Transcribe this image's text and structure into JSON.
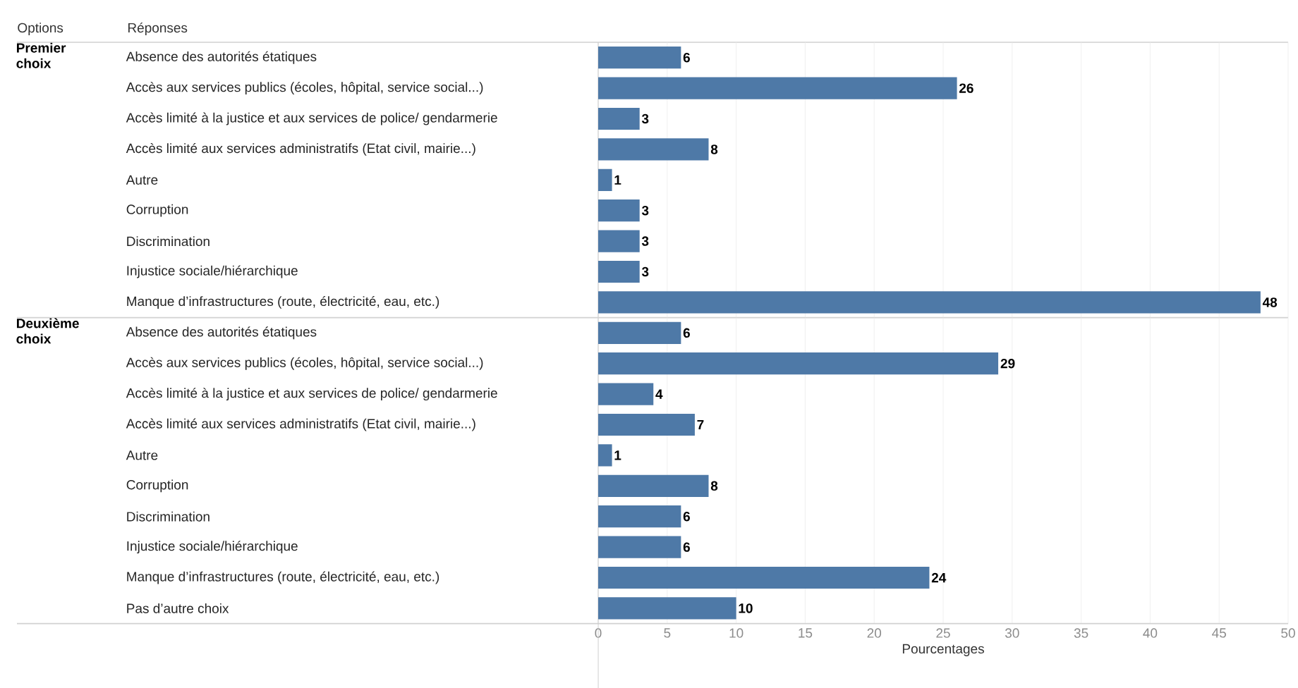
{
  "chart_data": [
    {
      "type": "bar",
      "orientation": "horizontal",
      "title": "Premier choix",
      "ylabel": "Réponses",
      "annotations": [
        "Options"
      ],
      "categories": [
        "Absence des autorités étatiques",
        "Accès aux services publics (écoles, hôpital, service social...)",
        "Accès limité à la justice et aux services de police/ gendarmerie",
        "Accès limité aux services administratifs (Etat civil, mairie...)",
        "Autre",
        "Corruption",
        "Discrimination",
        "Injustice sociale/hiérarchique",
        "Manque d’infrastructures (route, électricité, eau, etc.)"
      ],
      "values": [
        6,
        26,
        3,
        8,
        1,
        3,
        3,
        3,
        48
      ],
      "color": "#4e79a7",
      "data_labels": true,
      "xlim": [
        0,
        50
      ],
      "xticks": [
        0,
        5,
        10,
        15,
        20,
        25,
        30,
        35,
        40,
        45,
        50
      ],
      "grid": "x",
      "tick_labels": "y"
    },
    {
      "type": "bar",
      "orientation": "horizontal",
      "title": "Deuxième choix",
      "xlabel": "Pourcentages",
      "categories": [
        "Absence des autorités étatiques",
        "Accès aux services publics (écoles, hôpital, service social...)",
        "Accès limité à la justice et aux services de police/ gendarmerie",
        "Accès limité aux services administratifs (Etat civil, mairie...)",
        "Autre",
        "Corruption",
        "Discrimination",
        "Injustice sociale/hiérarchique",
        "Manque d’infrastructures (route, électricité, eau, etc.)",
        "Pas d’autre choix"
      ],
      "values": [
        6,
        29,
        4,
        7,
        1,
        8,
        6,
        6,
        24,
        10
      ],
      "color": "#4e79a7",
      "data_labels": true,
      "xlim": [
        0,
        50
      ],
      "xticks": [
        0,
        5,
        10,
        15,
        20,
        25,
        30,
        35,
        40,
        45,
        50
      ],
      "grid": "x"
    }
  ]
}
